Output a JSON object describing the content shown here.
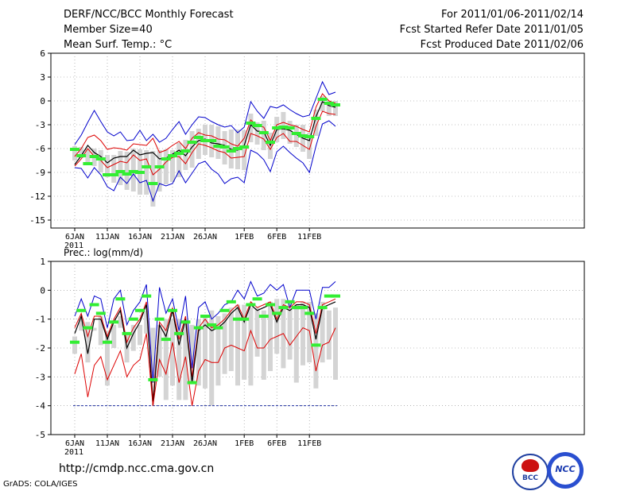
{
  "header": {
    "title": "DERF/NCC/BCC Monthly Forecast",
    "member_size": "Member Size=40",
    "variable": "Mean Surf. Temp.: °C",
    "period": "For 2011/01/06-2011/02/14",
    "started": "Fcst Started Refer Date 2011/01/05",
    "produced": "Fcst Produced Date 2011/02/06"
  },
  "footer": {
    "url": "http://cmdp.ncc.cma.gov.cn",
    "grads": "GrADS: COLA/IGES",
    "logo_left_text": "BCC",
    "logo_right_text": "NCC"
  },
  "colors": {
    "max_min": "#0000cc",
    "pct": "#dd0000",
    "mean": "#000000",
    "obs": "#33ee33",
    "bar": "#d4d4d4",
    "grid": "#888888"
  },
  "chart_data": [
    {
      "type": "line",
      "title": "Mean Surf. Temp.: °C",
      "x_tick_labels": [
        "6JAN",
        "11JAN",
        "16JAN",
        "21JAN",
        "26JAN",
        "1FEB",
        "6FEB",
        "11FEB"
      ],
      "x_tick_days": [
        0,
        5,
        10,
        15,
        20,
        26,
        31,
        36
      ],
      "year_label": "2011",
      "ylim": [
        -16,
        6
      ],
      "yticks": [
        6,
        3,
        0,
        -3,
        -6,
        -9,
        -12,
        -15
      ],
      "days": 40,
      "series": [
        {
          "name": "max",
          "values": [
            -5.5,
            -4.3,
            -2.7,
            -1.2,
            -2.6,
            -3.9,
            -4.4,
            -3.9,
            -5.0,
            -4.9,
            -3.7,
            -5.0,
            -4.2,
            -5.2,
            -4.7,
            -3.6,
            -2.6,
            -4.2,
            -3.0,
            -2.0,
            -2.1,
            -2.6,
            -3.0,
            -3.3,
            -3.1,
            -4.0,
            -3.3,
            -0.1,
            -1.3,
            -2.2,
            -0.7,
            -0.9,
            -0.5,
            -1.1,
            -1.6,
            -2.0,
            -1.8,
            0.3,
            2.4,
            0.8,
            1.1
          ]
        },
        {
          "name": "p90",
          "values": [
            -7.0,
            -6.0,
            -4.6,
            -4.3,
            -5.0,
            -6.1,
            -5.9,
            -6.0,
            -6.2,
            -5.4,
            -5.5,
            -5.6,
            -4.7,
            -6.5,
            -6.2,
            -5.6,
            -5.1,
            -6.0,
            -4.7,
            -4.0,
            -4.3,
            -4.4,
            -4.8,
            -4.9,
            -5.4,
            -5.7,
            -4.7,
            -2.4,
            -3.1,
            -3.3,
            -5.0,
            -3.0,
            -2.7,
            -3.0,
            -3.2,
            -3.6,
            -3.9,
            -0.8,
            0.9,
            0.0,
            -0.3
          ]
        },
        {
          "name": "mean",
          "values": [
            -8.0,
            -6.9,
            -5.6,
            -6.5,
            -7.0,
            -7.8,
            -7.2,
            -7.0,
            -7.0,
            -6.2,
            -6.8,
            -6.6,
            -6.5,
            -7.3,
            -7.2,
            -6.7,
            -6.2,
            -6.9,
            -5.8,
            -5.0,
            -4.8,
            -5.3,
            -5.4,
            -5.6,
            -6.1,
            -6.2,
            -5.6,
            -3.0,
            -3.8,
            -3.9,
            -5.6,
            -3.6,
            -3.5,
            -3.7,
            -4.2,
            -4.7,
            -5.0,
            -2.0,
            -0.1,
            -0.6,
            -0.8
          ]
        },
        {
          "name": "p10",
          "values": [
            -8.2,
            -7.3,
            -6.0,
            -7.0,
            -7.5,
            -8.4,
            -8.0,
            -7.6,
            -7.8,
            -6.8,
            -7.5,
            -7.3,
            -9.3,
            -8.6,
            -7.7,
            -7.1,
            -7.0,
            -7.9,
            -6.5,
            -5.4,
            -5.6,
            -5.9,
            -6.3,
            -6.5,
            -7.2,
            -7.1,
            -7.0,
            -4.1,
            -4.4,
            -4.8,
            -6.1,
            -4.6,
            -4.1,
            -5.1,
            -5.1,
            -5.6,
            -6.1,
            -3.2,
            -1.3,
            -1.6,
            -1.7
          ]
        },
        {
          "name": "min",
          "values": [
            -8.4,
            -8.5,
            -9.7,
            -8.4,
            -9.3,
            -10.8,
            -11.3,
            -9.6,
            -10.4,
            -9.2,
            -10.3,
            -10.0,
            -12.6,
            -10.4,
            -10.7,
            -10.4,
            -8.8,
            -10.3,
            -9.1,
            -7.9,
            -7.6,
            -8.6,
            -9.2,
            -10.4,
            -9.8,
            -9.6,
            -10.3,
            -6.2,
            -6.6,
            -7.4,
            -8.9,
            -6.4,
            -5.7,
            -6.5,
            -7.2,
            -7.8,
            -9.0,
            -5.7,
            -2.9,
            -2.5,
            -3.2
          ]
        },
        {
          "name": "obs",
          "values": [
            -6.1,
            -6.9,
            -7.9,
            -7.0,
            -7.3,
            -9.3,
            -9.3,
            -8.9,
            -9.2,
            -8.9,
            -9.0,
            -8.3,
            -10.4,
            -8.3,
            -7.3,
            -6.9,
            -6.6,
            -6.3,
            -5.2,
            -4.6,
            -5.0,
            -5.0,
            -5.7,
            -5.8,
            -6.3,
            -6.0,
            -5.8,
            -2.8,
            -3.1,
            -4.0,
            -5.2,
            -3.4,
            -3.3,
            -3.4,
            -4.1,
            -4.4,
            -4.5,
            -2.2,
            0.2,
            -0.3,
            -0.5
          ]
        }
      ],
      "box_low": [
        -7.5,
        -7.2,
        -8.0,
        -8.2,
        -9.0,
        -9.6,
        -10.3,
        -10.6,
        -11.2,
        -11.4,
        -11.8,
        -11.8,
        -13.3,
        -11.4,
        -10.5,
        -10.2,
        -9.6,
        -8.7,
        -8.4,
        -7.3,
        -6.8,
        -7.1,
        -7.3,
        -8.0,
        -8.5,
        -8.6,
        -8.7,
        -5.2,
        -5.5,
        -6.2,
        -7.3,
        -5.2,
        -4.8,
        -5.4,
        -5.8,
        -6.4,
        -7.3,
        -4.4,
        -1.3,
        -1.9,
        -1.9
      ],
      "box_high": [
        -5.7,
        -5.8,
        -6.1,
        -6.0,
        -6.2,
        -6.8,
        -6.8,
        -6.3,
        -6.4,
        -6.0,
        -6.1,
        -6.2,
        -6.3,
        -6.2,
        -6.1,
        -6.2,
        -5.3,
        -4.9,
        -3.8,
        -3.5,
        -3.0,
        -3.0,
        -3.2,
        -3.8,
        -3.6,
        -3.6,
        -3.7,
        -1.6,
        -2.7,
        -2.5,
        -4.0,
        -2.0,
        -1.4,
        -2.5,
        -3.0,
        -3.0,
        -4.0,
        -1.1,
        0.6,
        0.0,
        0.0
      ]
    },
    {
      "type": "line",
      "title": "Prec.: log(mm/d)",
      "x_tick_labels": [
        "6JAN",
        "11JAN",
        "16JAN",
        "21JAN",
        "26JAN",
        "1FEB",
        "6FEB",
        "11FEB"
      ],
      "x_tick_days": [
        0,
        5,
        10,
        15,
        20,
        26,
        31,
        36
      ],
      "year_label": "2011",
      "ylim": [
        -5,
        1
      ],
      "yticks": [
        1,
        0,
        -1,
        -2,
        -3,
        -4,
        -5
      ],
      "days": 40,
      "series": [
        {
          "name": "max",
          "values": [
            -0.9,
            -0.3,
            -0.9,
            -0.2,
            -0.3,
            -1.3,
            -0.3,
            0.0,
            -1.2,
            -0.7,
            -0.4,
            0.2,
            -3.2,
            0.1,
            -0.8,
            -0.3,
            -1.4,
            -0.2,
            -2.7,
            -0.6,
            -0.4,
            -1.0,
            -0.8,
            -0.5,
            -0.4,
            0.0,
            -0.3,
            0.3,
            -0.2,
            -0.1,
            0.2,
            0.0,
            0.2,
            -0.6,
            0.0,
            0.0,
            0.0,
            -1.0,
            0.1,
            0.1,
            0.3
          ]
        },
        {
          "name": "p90",
          "values": [
            -1.3,
            -0.8,
            -1.6,
            -0.9,
            -0.9,
            -1.6,
            -1.0,
            -0.6,
            -1.8,
            -1.3,
            -1.0,
            -0.4,
            -3.8,
            -1.1,
            -1.4,
            -0.6,
            -1.7,
            -0.9,
            -3.0,
            -1.3,
            -1.0,
            -1.3,
            -1.2,
            -1.0,
            -0.7,
            -0.5,
            -1.0,
            -0.4,
            -0.6,
            -0.5,
            -0.4,
            -1.0,
            -0.5,
            -0.6,
            -0.4,
            -0.4,
            -0.5,
            -1.5,
            -0.5,
            -0.4,
            -0.3
          ]
        },
        {
          "name": "mean",
          "values": [
            -1.5,
            -0.9,
            -2.2,
            -1.0,
            -1.0,
            -1.7,
            -1.1,
            -0.7,
            -2.0,
            -1.5,
            -1.1,
            -0.5,
            -4.0,
            -1.2,
            -1.6,
            -0.7,
            -1.9,
            -1.0,
            -3.2,
            -1.4,
            -1.2,
            -1.4,
            -1.3,
            -1.1,
            -0.8,
            -0.6,
            -1.1,
            -0.5,
            -0.7,
            -0.6,
            -0.5,
            -1.1,
            -0.6,
            -0.7,
            -0.5,
            -0.5,
            -0.6,
            -1.7,
            -0.6,
            -0.5,
            -0.4
          ]
        },
        {
          "name": "p10",
          "values": [
            -2.9,
            -2.2,
            -3.7,
            -2.6,
            -2.3,
            -3.1,
            -2.6,
            -2.1,
            -3.0,
            -2.6,
            -2.4,
            -1.5,
            -4.0,
            -2.4,
            -2.9,
            -1.8,
            -3.2,
            -2.3,
            -4.0,
            -2.8,
            -2.4,
            -2.5,
            -2.5,
            -2.0,
            -1.9,
            -2.0,
            -2.1,
            -1.4,
            -2.0,
            -2.0,
            -1.7,
            -1.6,
            -1.5,
            -1.9,
            -1.6,
            -1.3,
            -1.4,
            -2.8,
            -1.9,
            -1.8,
            -1.3
          ]
        },
        {
          "name": "obs",
          "values": [
            -1.8,
            -0.7,
            -1.3,
            -0.5,
            -0.8,
            -1.8,
            -1.1,
            -0.3,
            -1.5,
            -1.0,
            -0.7,
            -0.2,
            -3.1,
            -1.0,
            -1.7,
            -0.7,
            -1.5,
            -1.1,
            -3.2,
            -1.3,
            -0.9,
            -1.2,
            -1.3,
            -0.7,
            -0.4,
            -1.0,
            -1.0,
            -0.5,
            -0.3,
            -0.9,
            -0.5,
            -0.8,
            -0.6,
            -0.4,
            -0.6,
            -0.6,
            -0.8,
            -1.9,
            -0.6,
            -0.2,
            -0.2
          ]
        }
      ],
      "box_low": [
        -2.2,
        -1.4,
        -2.5,
        -1.4,
        -1.9,
        -3.3,
        -2.0,
        -1.3,
        -2.5,
        -2.1,
        -1.9,
        -1.5,
        -3.2,
        -3.0,
        -3.8,
        -3.3,
        -3.8,
        -3.8,
        -3.2,
        -3.3,
        -3.4,
        -4.0,
        -3.3,
        -2.9,
        -2.8,
        -3.3,
        -3.1,
        -3.3,
        -2.3,
        -3.1,
        -2.8,
        -2.2,
        -2.7,
        -2.4,
        -3.2,
        -2.6,
        -2.5,
        -3.4,
        -2.5,
        -2.4,
        -3.1
      ],
      "box_high": [
        -1.6,
        -1.0,
        -1.1,
        -1.3,
        -0.9,
        -1.4,
        -1.2,
        -0.9,
        -1.5,
        -1.2,
        -1.2,
        -0.7,
        -1.3,
        -1.2,
        -1.0,
        -1.0,
        -1.0,
        -1.1,
        -1.2,
        -1.0,
        -0.9,
        -0.7,
        -0.9,
        -0.8,
        -0.6,
        -0.5,
        -0.5,
        -0.6,
        -0.6,
        -0.7,
        -0.4,
        -0.3,
        -0.3,
        -0.4,
        -0.5,
        -0.4,
        -0.4,
        -0.8,
        -0.4,
        -0.7,
        -0.6
      ],
      "threshold": -4
    }
  ]
}
